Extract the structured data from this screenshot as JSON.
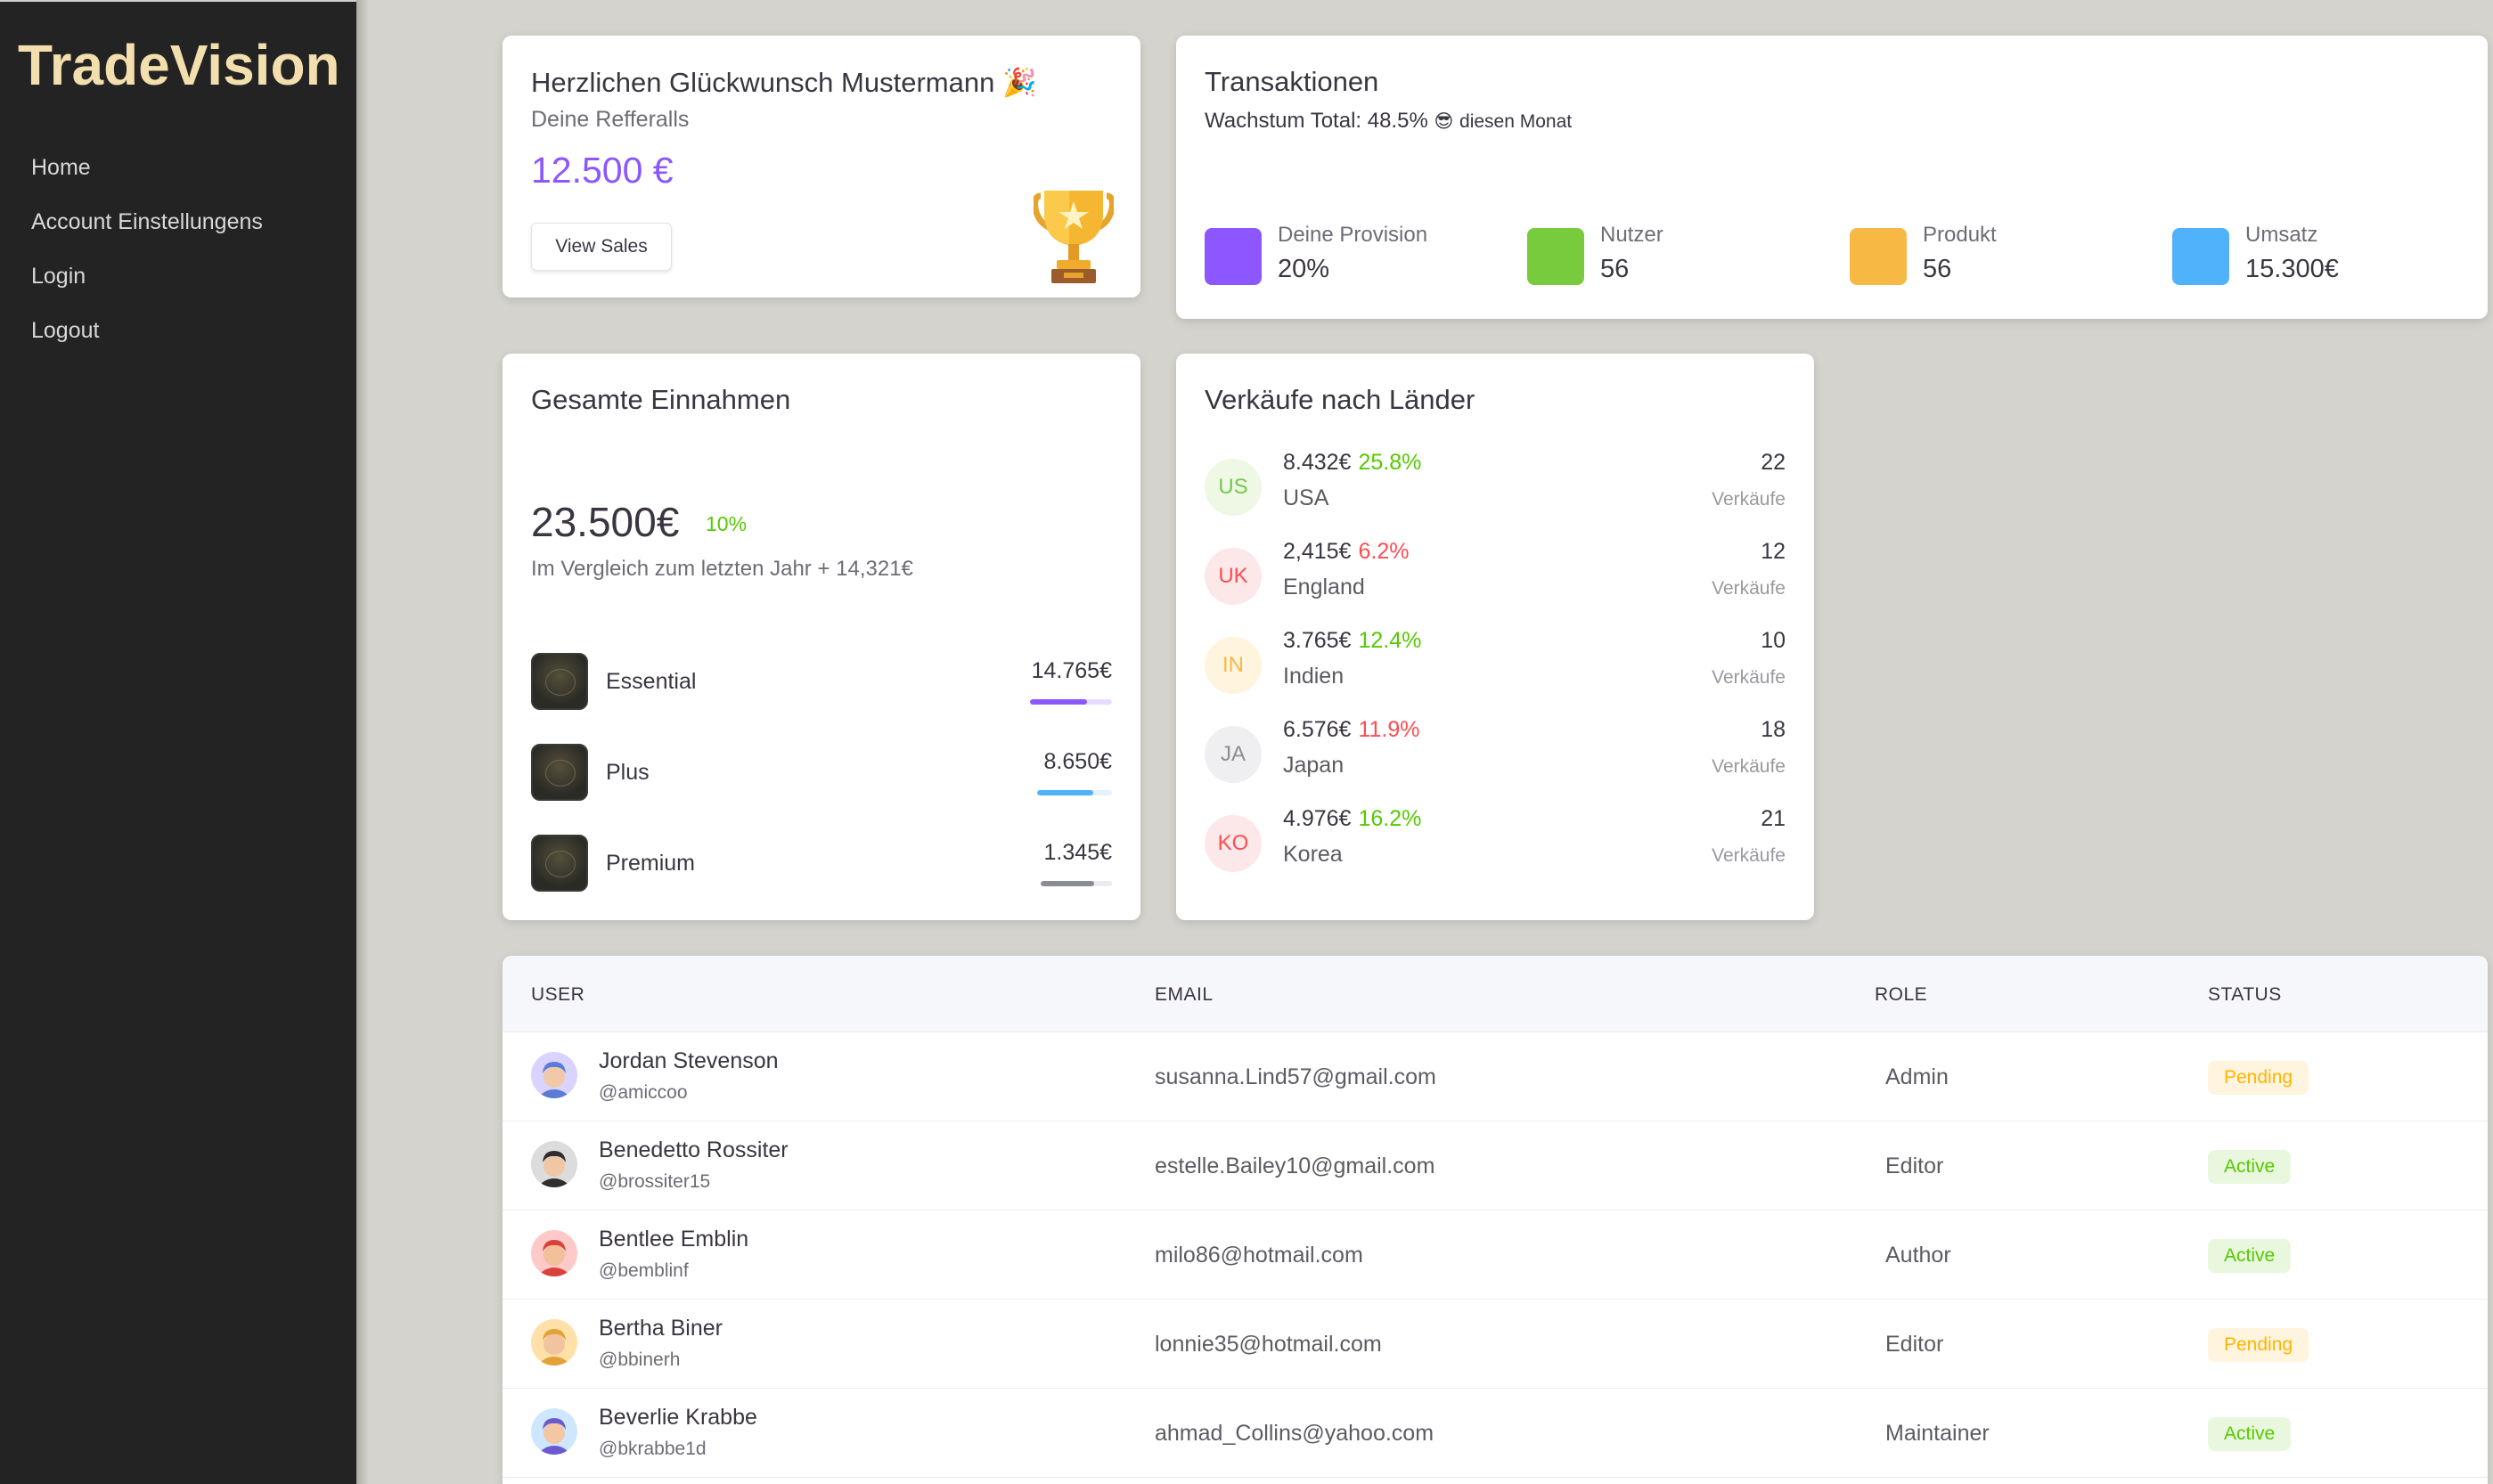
{
  "app": {
    "brand": "TradeVision"
  },
  "nav": [
    "Home",
    "Account Einstellungens",
    "Login",
    "Logout"
  ],
  "congrats": {
    "title": "Herzlichen Glückwunsch Mustermann",
    "emoji": "🎉",
    "subtitle": "Deine Refferalls",
    "amount": "12.500 €",
    "button": "View Sales",
    "icon": "trophy-icon"
  },
  "transactions": {
    "title": "Transaktionen",
    "growth_label": "Wachstum Total: 48.5%",
    "growth_emoji": "😎",
    "growth_suffix": "diesen Monat",
    "stats": [
      {
        "label": "Deine Provision",
        "value": "20%",
        "color": "#8c57ff"
      },
      {
        "label": "Nutzer",
        "value": "56",
        "color": "#78cb3c"
      },
      {
        "label": "Produkt",
        "value": "56",
        "color": "#f7b943"
      },
      {
        "label": "Umsatz",
        "value": "15.300€",
        "color": "#4fb2fa"
      }
    ]
  },
  "revenue": {
    "title": "Gesamte Einnahmen",
    "total": "23.500€",
    "change": "10%",
    "comparison": "Im Vergleich zum letzten Jahr + 14,321€",
    "plans": [
      {
        "name": "Essential",
        "value": "14.765€",
        "progress": 0.7,
        "color": "#8c57ff",
        "track": "#e7dcff"
      },
      {
        "name": "Plus",
        "value": "8.650€",
        "progress": 0.75,
        "color": "#4fb2fa",
        "track": "#e2f2fe"
      },
      {
        "name": "Premium",
        "value": "1.345€",
        "progress": 0.75,
        "color": "#8a8d93",
        "track": "#ececee"
      }
    ]
  },
  "countries": {
    "title": "Verkäufe nach Länder",
    "unit": "Verkäufe",
    "rows": [
      {
        "code": "US",
        "amount": "8.432€",
        "pct": "25.8%",
        "trend": "pos",
        "name": "USA",
        "count": "22",
        "bg": "#eef8e5",
        "fg": "#72c94a"
      },
      {
        "code": "UK",
        "amount": "2,415€",
        "pct": "6.2%",
        "trend": "neg",
        "name": "England",
        "count": "12",
        "bg": "#fde8e9",
        "fg": "#ff4c51"
      },
      {
        "code": "IN",
        "amount": "3.765€",
        "pct": "12.4%",
        "trend": "pos",
        "name": "Indien",
        "count": "10",
        "bg": "#fff4de",
        "fg": "#f7b943"
      },
      {
        "code": "JA",
        "amount": "6.576€",
        "pct": "11.9%",
        "trend": "neg",
        "name": "Japan",
        "count": "18",
        "bg": "#efeff1",
        "fg": "#8a8d93"
      },
      {
        "code": "KO",
        "amount": "4.976€",
        "pct": "16.2%",
        "trend": "pos",
        "name": "Korea",
        "count": "21",
        "bg": "#fde8e9",
        "fg": "#ff4c51"
      }
    ]
  },
  "users": {
    "headers": [
      "USER",
      "EMAIL",
      "ROLE",
      "STATUS"
    ],
    "rows": [
      {
        "name": "Jordan Stevenson",
        "handle": "@amiccoo",
        "email": "susanna.Lind57@gmail.com",
        "role": "Admin",
        "status": "Pending",
        "avatar_bg": "#d9d3ff",
        "skin": "#f2c9a8",
        "hair": "#5b7bd5"
      },
      {
        "name": "Benedetto Rossiter",
        "handle": "@brossiter15",
        "email": "estelle.Bailey10@gmail.com",
        "role": "Editor",
        "status": "Active",
        "avatar_bg": "#dcdcdc",
        "skin": "#f0c7a5",
        "hair": "#2e2e2e"
      },
      {
        "name": "Bentlee Emblin",
        "handle": "@bemblinf",
        "email": "milo86@hotmail.com",
        "role": "Author",
        "status": "Active",
        "avatar_bg": "#ffc9c9",
        "skin": "#f2c09a",
        "hair": "#d9413b"
      },
      {
        "name": "Bertha Biner",
        "handle": "@bbinerh",
        "email": "lonnie35@hotmail.com",
        "role": "Editor",
        "status": "Pending",
        "avatar_bg": "#ffe0a8",
        "skin": "#f0c49e",
        "hair": "#e2a237"
      },
      {
        "name": "Beverlie Krabbe",
        "handle": "@bkrabbe1d",
        "email": "ahmad_Collins@yahoo.com",
        "role": "Maintainer",
        "status": "Active",
        "avatar_bg": "#cfe6ff",
        "skin": "#f3c7a3",
        "hair": "#6a5acd"
      }
    ]
  }
}
